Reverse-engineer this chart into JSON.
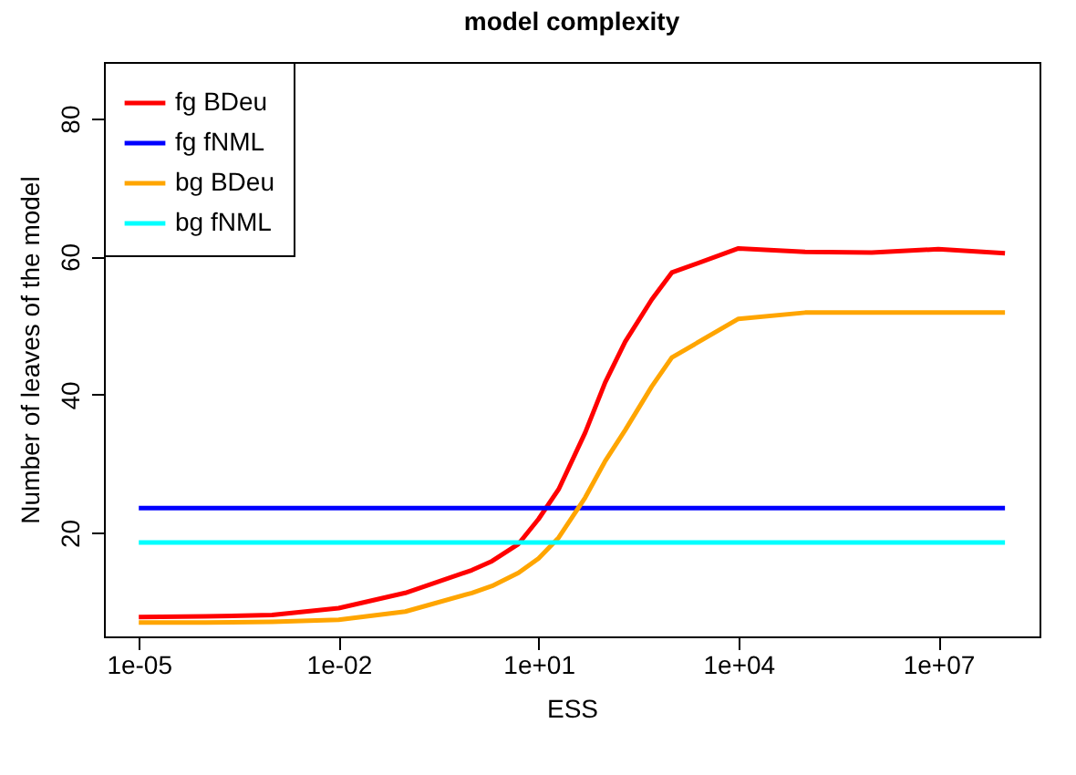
{
  "chart_data": {
    "type": "line",
    "title": "model complexity",
    "xlabel": "ESS",
    "ylabel": "Number of leaves of the model",
    "x": [
      1e-05,
      0.0001,
      0.001,
      0.01,
      0.1,
      1,
      2,
      5,
      10,
      20,
      50,
      100,
      200,
      500,
      1000,
      10000,
      100000,
      1000000,
      10000000,
      100000000
    ],
    "series": [
      {
        "name": "fg BDeu",
        "color": "#ff0000",
        "values": [
          7.8,
          7.9,
          8.1,
          9.1,
          11.3,
          14.6,
          15.9,
          18.4,
          22.0,
          26.3,
          34.5,
          41.8,
          47.7,
          53.8,
          57.7,
          61.2,
          60.7,
          60.6,
          61.1,
          60.5
        ]
      },
      {
        "name": "fg fNML",
        "color": "#0000ff",
        "values": [
          23.6,
          23.6,
          23.6,
          23.6,
          23.6,
          23.6,
          23.6,
          23.6,
          23.6,
          23.6,
          23.6,
          23.6,
          23.6,
          23.6,
          23.6,
          23.6,
          23.6,
          23.6,
          23.6,
          23.6
        ]
      },
      {
        "name": "bg BDeu",
        "color": "#ffa500",
        "values": [
          7.0,
          7.0,
          7.1,
          7.4,
          8.6,
          11.3,
          12.3,
          14.2,
          16.3,
          19.3,
          25.1,
          30.4,
          34.9,
          41.2,
          45.4,
          51.0,
          51.9,
          51.9,
          51.9,
          51.9
        ]
      },
      {
        "name": "bg fNML",
        "color": "#00ffff",
        "values": [
          18.6,
          18.6,
          18.6,
          18.6,
          18.6,
          18.6,
          18.6,
          18.6,
          18.6,
          18.6,
          18.6,
          18.6,
          18.6,
          18.6,
          18.6,
          18.6,
          18.6,
          18.6,
          18.6,
          18.6
        ]
      }
    ],
    "log": "x",
    "xlim": [
      3e-06,
      330000000
    ],
    "ylim": [
      5,
      88.2
    ],
    "xticks": [
      {
        "value": 1e-05,
        "label": "1e-05"
      },
      {
        "value": 0.01,
        "label": "1e-02"
      },
      {
        "value": 10,
        "label": "1e+01"
      },
      {
        "value": 10000,
        "label": "1e+04"
      },
      {
        "value": 10000000,
        "label": "1e+07"
      }
    ],
    "yticks": [
      20,
      40,
      60,
      80
    ],
    "grid": false,
    "legend": "top left",
    "marker": "none",
    "line_style": "solid"
  }
}
